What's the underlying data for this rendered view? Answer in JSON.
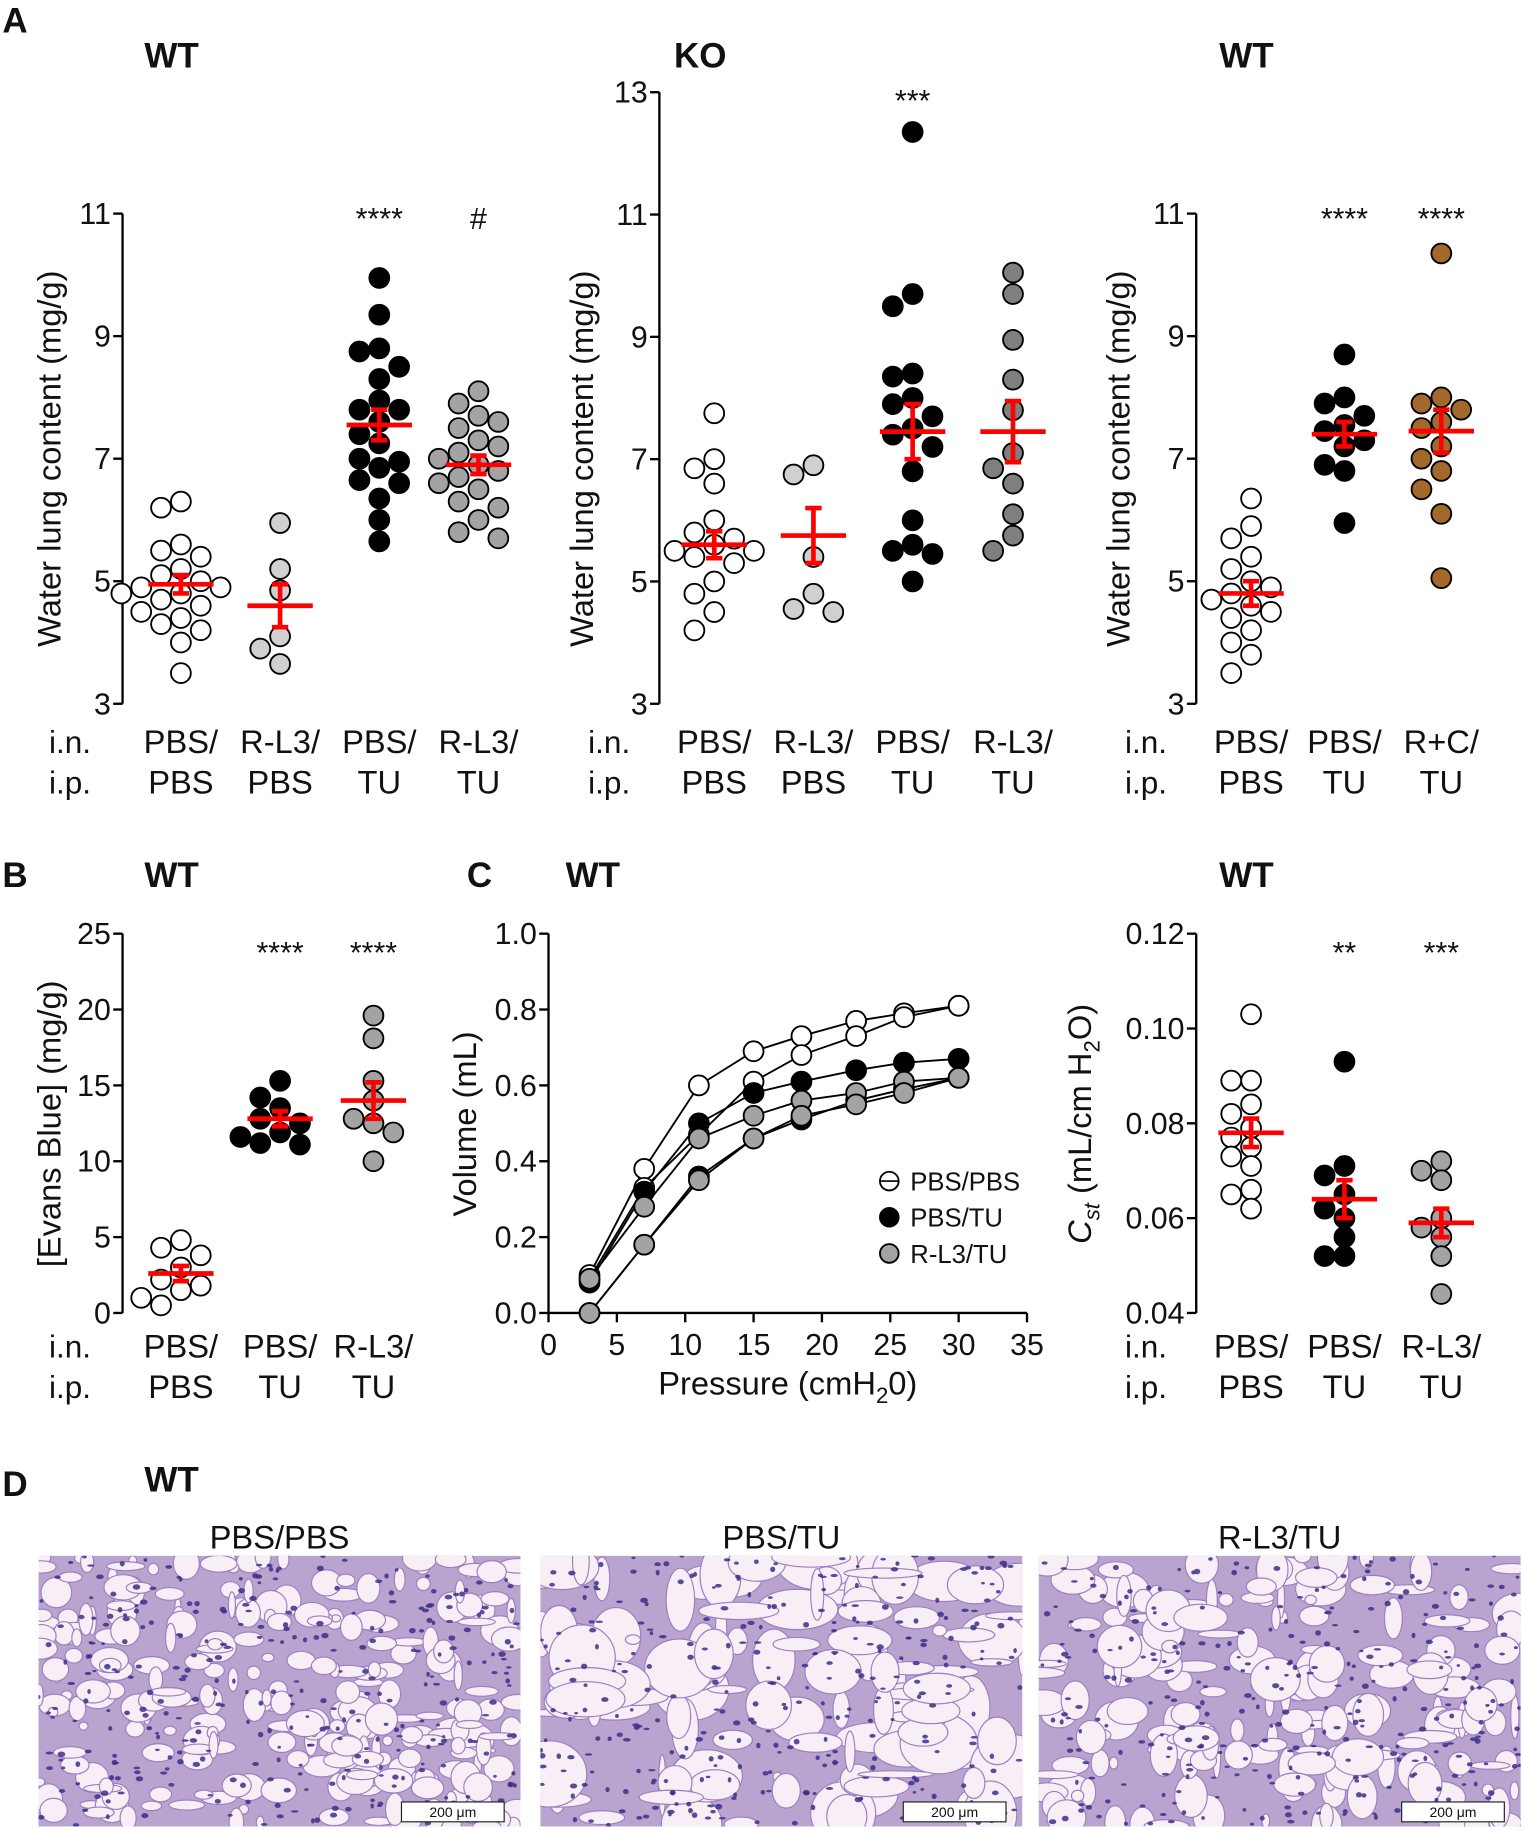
{
  "panel_letters": {
    "a": "A",
    "b": "B",
    "c": "C",
    "d": "D"
  },
  "colors": {
    "mean": "#ff0000",
    "open": "#ffffff",
    "black": "#000000",
    "light_gray": "#d0d0d0",
    "gray": "#a3a3a3",
    "dark_gray": "#7f7f7f",
    "brown": "#a2692b",
    "tissue": "#f4eaf4",
    "nuclei": "#3b2f8a"
  },
  "row_labels": [
    "i.n.",
    "i.p."
  ],
  "chart_data": [
    {
      "id": "A1",
      "type": "scatter",
      "title": "WT",
      "ylabel": "Water lung content (mg/g)",
      "ylim": [
        3,
        11
      ],
      "yticks": [
        "3",
        "5",
        "7",
        "9",
        "11"
      ],
      "groups": [
        {
          "label1": "PBS/",
          "label2": "PBS",
          "fill": "#ffffff",
          "annotation": "",
          "mean": 4.95,
          "sem": 0.15,
          "values": [
            6.3,
            6.2,
            5.6,
            5.5,
            5.4,
            5.2,
            5.1,
            5.0,
            4.9,
            4.9,
            4.8,
            4.8,
            4.7,
            4.6,
            4.5,
            4.4,
            4.3,
            4.2,
            4.0,
            3.5
          ]
        },
        {
          "label1": "R-L3/",
          "label2": "PBS",
          "fill": "#d0d0d0",
          "annotation": "",
          "mean": 4.6,
          "sem": 0.35,
          "values": [
            5.95,
            5.2,
            4.85,
            4.1,
            3.9,
            3.65
          ]
        },
        {
          "label1": "PBS/",
          "label2": "TU",
          "fill": "#000000",
          "annotation": "****",
          "mean": 7.55,
          "sem": 0.25,
          "values": [
            9.95,
            9.35,
            8.8,
            8.75,
            8.5,
            8.3,
            7.95,
            7.8,
            7.8,
            7.6,
            7.4,
            7.25,
            7.0,
            6.95,
            6.85,
            6.65,
            6.6,
            6.35,
            6.0,
            5.65
          ]
        },
        {
          "label1": "R-L3/",
          "label2": "TU",
          "fill": "#a3a3a3",
          "annotation": "#",
          "mean": 6.9,
          "sem": 0.15,
          "values": [
            8.1,
            7.9,
            7.7,
            7.6,
            7.5,
            7.3,
            7.2,
            7.1,
            7.0,
            6.9,
            6.8,
            6.7,
            6.6,
            6.5,
            6.3,
            6.2,
            6.0,
            5.8,
            5.7
          ]
        }
      ]
    },
    {
      "id": "A2",
      "type": "scatter",
      "title": "KO",
      "ylabel": "Water lung content (mg/g)",
      "ylim": [
        3,
        13
      ],
      "yticks": [
        "3",
        "5",
        "7",
        "9",
        "11",
        "13"
      ],
      "groups": [
        {
          "label1": "PBS/",
          "label2": "PBS",
          "fill": "#ffffff",
          "annotation": "",
          "mean": 5.6,
          "sem": 0.22,
          "values": [
            7.75,
            7.0,
            6.85,
            6.6,
            6.0,
            5.8,
            5.7,
            5.6,
            5.5,
            5.5,
            5.4,
            5.3,
            5.0,
            4.8,
            4.5,
            4.2
          ]
        },
        {
          "label1": "R-L3/",
          "label2": "PBS",
          "fill": "#d0d0d0",
          "annotation": "",
          "mean": 5.75,
          "sem": 0.45,
          "values": [
            6.9,
            6.75,
            5.4,
            4.8,
            4.5,
            4.55
          ]
        },
        {
          "label1": "PBS/",
          "label2": "TU",
          "fill": "#000000",
          "annotation": "***",
          "mean": 7.45,
          "sem": 0.45,
          "values": [
            12.35,
            9.7,
            9.5,
            8.4,
            8.35,
            8.0,
            7.9,
            7.7,
            7.5,
            7.4,
            7.2,
            6.8,
            6.0,
            5.6,
            5.5,
            5.45,
            5.0
          ]
        },
        {
          "label1": "R-L3/",
          "label2": "TU",
          "fill": "#7f7f7f",
          "annotation": "",
          "mean": 7.45,
          "sem": 0.5,
          "values": [
            10.05,
            9.7,
            8.95,
            8.3,
            7.8,
            7.1,
            6.85,
            6.6,
            6.1,
            5.75,
            5.5
          ]
        }
      ]
    },
    {
      "id": "A3",
      "type": "scatter",
      "title": "WT",
      "ylabel": "Water lung content (mg/g)",
      "ylim": [
        3,
        11
      ],
      "yticks": [
        "3",
        "5",
        "7",
        "9",
        "11"
      ],
      "groups": [
        {
          "label1": "PBS/",
          "label2": "PBS",
          "fill": "#ffffff",
          "annotation": "",
          "mean": 4.8,
          "sem": 0.2,
          "values": [
            6.35,
            5.9,
            5.7,
            5.4,
            5.2,
            5.0,
            4.9,
            4.8,
            4.7,
            4.6,
            4.5,
            4.4,
            4.2,
            4.0,
            3.8,
            3.5
          ]
        },
        {
          "label1": "PBS/",
          "label2": "TU",
          "fill": "#000000",
          "annotation": "****",
          "mean": 7.4,
          "sem": 0.2,
          "values": [
            8.7,
            8.0,
            7.9,
            7.7,
            7.55,
            7.45,
            7.3,
            7.2,
            6.9,
            6.8,
            5.95
          ]
        },
        {
          "label1": "R+C/",
          "label2": "TU",
          "fill": "#a2692b",
          "annotation": "****",
          "mean": 7.45,
          "sem": 0.35,
          "values": [
            10.35,
            8.0,
            7.9,
            7.8,
            7.6,
            7.5,
            7.2,
            7.0,
            6.8,
            6.5,
            6.1,
            5.05
          ]
        }
      ]
    },
    {
      "id": "B",
      "type": "scatter",
      "title": "WT",
      "ylabel": "[Evans Blue] (mg/g)",
      "ylim": [
        0,
        25
      ],
      "yticks": [
        "0",
        "5",
        "10",
        "15",
        "20",
        "25"
      ],
      "groups": [
        {
          "label1": "PBS/",
          "label2": "PBS",
          "fill": "#ffffff",
          "annotation": "",
          "mean": 2.6,
          "sem": 0.5,
          "values": [
            4.8,
            4.3,
            3.8,
            3.0,
            2.2,
            1.8,
            1.5,
            1.0,
            0.5
          ]
        },
        {
          "label1": "PBS/",
          "label2": "TU",
          "fill": "#000000",
          "annotation": "****",
          "mean": 12.8,
          "sem": 0.5,
          "values": [
            15.3,
            14.2,
            13.5,
            12.8,
            12.5,
            11.9,
            11.6,
            11.2,
            11.1
          ]
        },
        {
          "label1": "R-L3/",
          "label2": "TU",
          "fill": "#a3a3a3",
          "annotation": "****",
          "mean": 14.0,
          "sem": 1.2,
          "values": [
            19.6,
            18.1,
            15.3,
            14.0,
            12.8,
            12.5,
            11.9,
            10.0
          ]
        }
      ]
    },
    {
      "id": "C1",
      "type": "line",
      "title": "WT",
      "ylabel": "Volume (mL)",
      "xlabel_parts": [
        "Pressure (cmH",
        "2",
        "0)"
      ],
      "xlim": [
        0,
        35
      ],
      "ylim": [
        0,
        1.0
      ],
      "xticks": [
        "0",
        "5",
        "10",
        "15",
        "20",
        "25",
        "30",
        "35"
      ],
      "yticks": [
        "0.0",
        "0.2",
        "0.4",
        "0.6",
        "0.8",
        "1.0"
      ],
      "x": [
        3,
        7,
        11,
        15,
        18.5,
        22.5,
        26,
        30
      ],
      "legend": [
        {
          "label": "PBS/PBS",
          "fill": "#ffffff"
        },
        {
          "label": "PBS/TU",
          "fill": "#000000"
        },
        {
          "label": "R-L3/TU",
          "fill": "#a3a3a3"
        }
      ],
      "legend_position": "bottom-right",
      "series": [
        {
          "name": "PBS/PBS",
          "fill": "#ffffff",
          "values": [
            0.1,
            0.38,
            0.6,
            0.69,
            0.73,
            0.77,
            0.79,
            0.81
          ]
        },
        {
          "name": "PBS/PBS",
          "fill": "#ffffff",
          "values": [
            0.09,
            0.33,
            0.47,
            0.61,
            0.68,
            0.73,
            0.78,
            0.81
          ]
        },
        {
          "name": "PBS/TU",
          "fill": "#000000",
          "values": [
            0.08,
            0.32,
            0.5,
            0.58,
            0.61,
            0.64,
            0.66,
            0.67
          ]
        },
        {
          "name": "PBS/TU",
          "fill": "#000000",
          "values": [
            0.0,
            0.18,
            0.36,
            0.46,
            0.51,
            0.56,
            0.59,
            0.62
          ]
        },
        {
          "name": "R-L3/TU",
          "fill": "#a3a3a3",
          "values": [
            0.09,
            0.28,
            0.46,
            0.52,
            0.56,
            0.58,
            0.61,
            0.62
          ]
        },
        {
          "name": "R-L3/TU",
          "fill": "#a3a3a3",
          "values": [
            0.0,
            0.18,
            0.35,
            0.46,
            0.52,
            0.55,
            0.58,
            0.62
          ]
        }
      ]
    },
    {
      "id": "C2",
      "type": "scatter",
      "title": "WT",
      "ylabel_parts": [
        "C",
        "st",
        " (mL/cm H",
        "2",
        "O)"
      ],
      "ylim": [
        0.04,
        0.12
      ],
      "yticks": [
        "0.04",
        "0.06",
        "0.08",
        "0.10",
        "0.12"
      ],
      "groups": [
        {
          "label1": "PBS/",
          "label2": "PBS",
          "fill": "#ffffff",
          "annotation": "",
          "mean": 0.078,
          "sem": 0.003,
          "values": [
            0.103,
            0.089,
            0.089,
            0.084,
            0.082,
            0.079,
            0.077,
            0.075,
            0.073,
            0.071,
            0.066,
            0.065,
            0.062
          ]
        },
        {
          "label1": "PBS/",
          "label2": "TU",
          "fill": "#000000",
          "annotation": "**",
          "mean": 0.064,
          "sem": 0.004,
          "values": [
            0.093,
            0.071,
            0.069,
            0.065,
            0.062,
            0.06,
            0.056,
            0.052,
            0.052
          ]
        },
        {
          "label1": "R-L3/",
          "label2": "TU",
          "fill": "#a3a3a3",
          "annotation": "***",
          "mean": 0.059,
          "sem": 0.003,
          "values": [
            0.072,
            0.07,
            0.068,
            0.06,
            0.058,
            0.056,
            0.052,
            0.044
          ]
        }
      ]
    }
  ],
  "histology": {
    "title": "WT",
    "panels": [
      {
        "label": "PBS/PBS",
        "scale_bar": "200 μm"
      },
      {
        "label": "PBS/TU",
        "scale_bar": "200 μm"
      },
      {
        "label": "R-L3/TU",
        "scale_bar": "200 μm"
      }
    ]
  }
}
